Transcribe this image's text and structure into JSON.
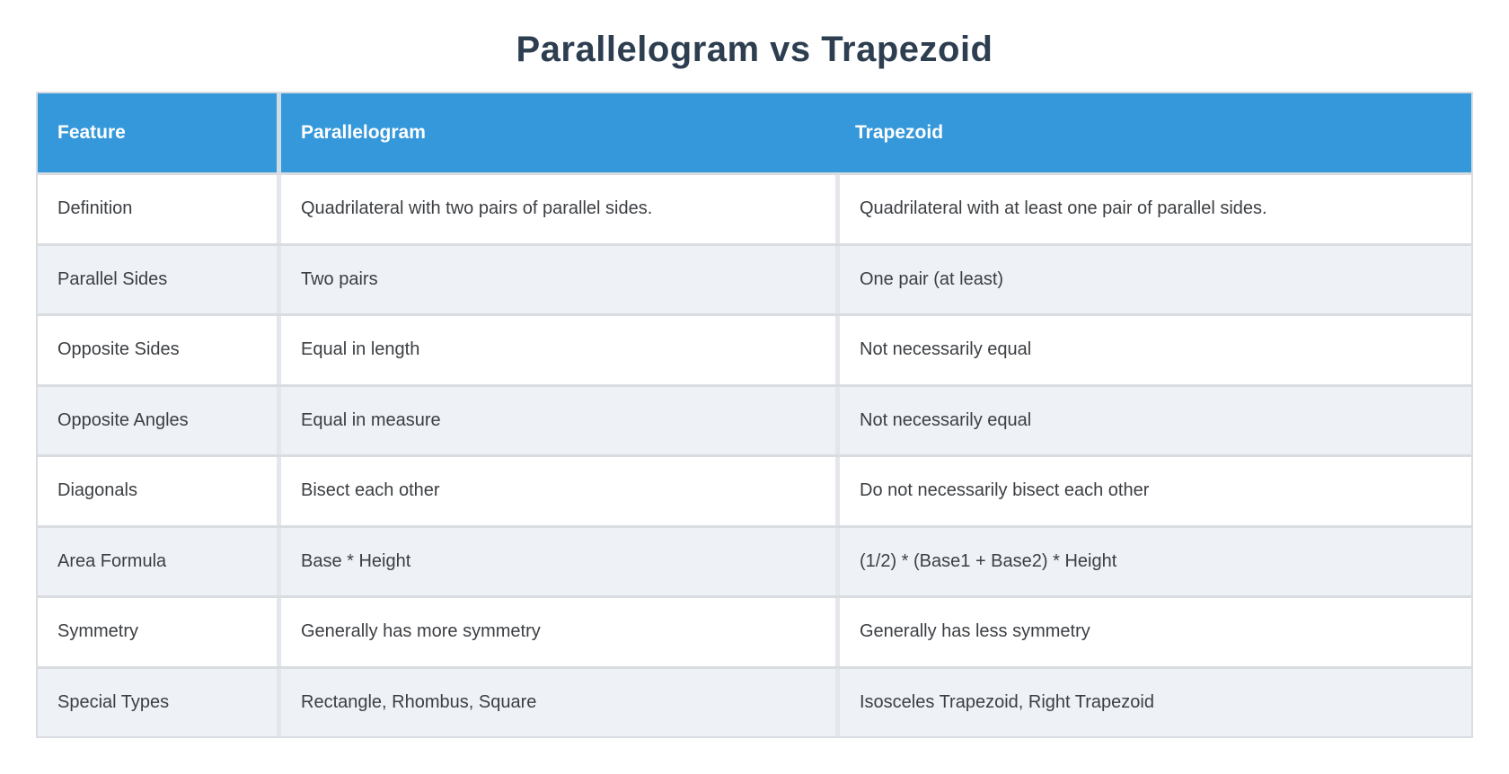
{
  "page_title": "Parallelogram vs Trapezoid",
  "colors": {
    "header_bg": "#3598db",
    "header_text": "#ffffff",
    "title_color": "#2d3e50",
    "cell_text": "#3b3e42",
    "row_alt_bg": "#eef2f7",
    "row_bg": "#ffffff",
    "border_color": "#d9dce0",
    "divider_color": "#e3e6ea",
    "header_divider": "#cfdce6"
  },
  "chart_data": {
    "type": "table",
    "title": "Parallelogram vs Trapezoid",
    "columns": [
      "Feature",
      "Parallelogram",
      "Trapezoid"
    ],
    "rows": [
      [
        "Definition",
        "Quadrilateral with two pairs of parallel sides.",
        "Quadrilateral with at least one pair of parallel sides."
      ],
      [
        "Parallel Sides",
        "Two pairs",
        "One pair (at least)"
      ],
      [
        "Opposite Sides",
        "Equal in length",
        "Not necessarily equal"
      ],
      [
        "Opposite Angles",
        "Equal in measure",
        "Not necessarily equal"
      ],
      [
        "Diagonals",
        "Bisect each other",
        "Do not necessarily bisect each other"
      ],
      [
        "Area Formula",
        "Base * Height",
        "(1/2) * (Base1 + Base2) * Height"
      ],
      [
        "Symmetry",
        "Generally has more symmetry",
        "Generally has less symmetry"
      ],
      [
        "Special Types",
        "Rectangle, Rhombus, Square",
        "Isosceles Trapezoid, Right Trapezoid"
      ]
    ]
  },
  "table": {
    "columns": [
      "Feature",
      "Parallelogram",
      "Trapezoid"
    ],
    "rows": [
      {
        "feature": "Definition",
        "parallelogram": "Quadrilateral with two pairs of parallel sides.",
        "trapezoid": "Quadrilateral with at least one pair of parallel sides."
      },
      {
        "feature": "Parallel Sides",
        "parallelogram": "Two pairs",
        "trapezoid": "One pair (at least)"
      },
      {
        "feature": "Opposite Sides",
        "parallelogram": "Equal in length",
        "trapezoid": "Not necessarily equal"
      },
      {
        "feature": "Opposite Angles",
        "parallelogram": "Equal in measure",
        "trapezoid": "Not necessarily equal"
      },
      {
        "feature": "Diagonals",
        "parallelogram": "Bisect each other",
        "trapezoid": "Do not necessarily bisect each other"
      },
      {
        "feature": "Area Formula",
        "parallelogram": "Base * Height",
        "trapezoid": "(1/2) * (Base1 + Base2) * Height"
      },
      {
        "feature": "Symmetry",
        "parallelogram": "Generally has more symmetry",
        "trapezoid": "Generally has less symmetry"
      },
      {
        "feature": "Special Types",
        "parallelogram": "Rectangle, Rhombus, Square",
        "trapezoid": "Isosceles Trapezoid, Right Trapezoid"
      }
    ]
  }
}
